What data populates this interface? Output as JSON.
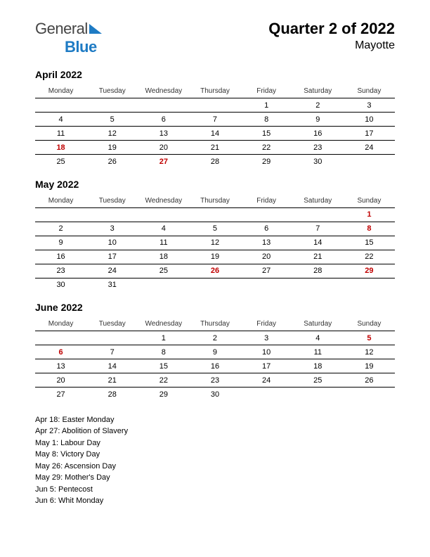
{
  "logo": {
    "general": "General",
    "blue": "Blue",
    "tri_color": "#1e7bc4"
  },
  "header": {
    "title": "Quarter 2 of 2022",
    "subtitle": "Mayotte"
  },
  "weekdays": [
    "Monday",
    "Tuesday",
    "Wednesday",
    "Thursday",
    "Friday",
    "Saturday",
    "Sunday"
  ],
  "colors": {
    "holiday": "#c00000",
    "text": "#000000",
    "border": "#000000",
    "background": "#ffffff"
  },
  "fonts": {
    "title_size": 22,
    "subtitle_size": 16,
    "month_title_size": 14,
    "weekday_size": 10,
    "cell_size": 11,
    "holiday_list_size": 11
  },
  "months": [
    {
      "title": "April 2022",
      "weeks": [
        [
          {
            "n": ""
          },
          {
            "n": ""
          },
          {
            "n": ""
          },
          {
            "n": ""
          },
          {
            "n": "1"
          },
          {
            "n": "2"
          },
          {
            "n": "3"
          }
        ],
        [
          {
            "n": "4"
          },
          {
            "n": "5"
          },
          {
            "n": "6"
          },
          {
            "n": "7"
          },
          {
            "n": "8"
          },
          {
            "n": "9"
          },
          {
            "n": "10"
          }
        ],
        [
          {
            "n": "11"
          },
          {
            "n": "12"
          },
          {
            "n": "13"
          },
          {
            "n": "14"
          },
          {
            "n": "15"
          },
          {
            "n": "16"
          },
          {
            "n": "17"
          }
        ],
        [
          {
            "n": "18",
            "h": true
          },
          {
            "n": "19"
          },
          {
            "n": "20"
          },
          {
            "n": "21"
          },
          {
            "n": "22"
          },
          {
            "n": "23"
          },
          {
            "n": "24"
          }
        ],
        [
          {
            "n": "25"
          },
          {
            "n": "26"
          },
          {
            "n": "27",
            "h": true
          },
          {
            "n": "28"
          },
          {
            "n": "29"
          },
          {
            "n": "30"
          },
          {
            "n": ""
          }
        ]
      ]
    },
    {
      "title": "May 2022",
      "weeks": [
        [
          {
            "n": ""
          },
          {
            "n": ""
          },
          {
            "n": ""
          },
          {
            "n": ""
          },
          {
            "n": ""
          },
          {
            "n": ""
          },
          {
            "n": "1",
            "h": true
          }
        ],
        [
          {
            "n": "2"
          },
          {
            "n": "3"
          },
          {
            "n": "4"
          },
          {
            "n": "5"
          },
          {
            "n": "6"
          },
          {
            "n": "7"
          },
          {
            "n": "8",
            "h": true
          }
        ],
        [
          {
            "n": "9"
          },
          {
            "n": "10"
          },
          {
            "n": "11"
          },
          {
            "n": "12"
          },
          {
            "n": "13"
          },
          {
            "n": "14"
          },
          {
            "n": "15"
          }
        ],
        [
          {
            "n": "16"
          },
          {
            "n": "17"
          },
          {
            "n": "18"
          },
          {
            "n": "19"
          },
          {
            "n": "20"
          },
          {
            "n": "21"
          },
          {
            "n": "22"
          }
        ],
        [
          {
            "n": "23"
          },
          {
            "n": "24"
          },
          {
            "n": "25"
          },
          {
            "n": "26",
            "h": true
          },
          {
            "n": "27"
          },
          {
            "n": "28"
          },
          {
            "n": "29",
            "h": true
          }
        ],
        [
          {
            "n": "30"
          },
          {
            "n": "31"
          },
          {
            "n": ""
          },
          {
            "n": ""
          },
          {
            "n": ""
          },
          {
            "n": ""
          },
          {
            "n": ""
          }
        ]
      ]
    },
    {
      "title": "June 2022",
      "weeks": [
        [
          {
            "n": ""
          },
          {
            "n": ""
          },
          {
            "n": "1"
          },
          {
            "n": "2"
          },
          {
            "n": "3"
          },
          {
            "n": "4"
          },
          {
            "n": "5",
            "h": true
          }
        ],
        [
          {
            "n": "6",
            "h": true
          },
          {
            "n": "7"
          },
          {
            "n": "8"
          },
          {
            "n": "9"
          },
          {
            "n": "10"
          },
          {
            "n": "11"
          },
          {
            "n": "12"
          }
        ],
        [
          {
            "n": "13"
          },
          {
            "n": "14"
          },
          {
            "n": "15"
          },
          {
            "n": "16"
          },
          {
            "n": "17"
          },
          {
            "n": "18"
          },
          {
            "n": "19"
          }
        ],
        [
          {
            "n": "20"
          },
          {
            "n": "21"
          },
          {
            "n": "22"
          },
          {
            "n": "23"
          },
          {
            "n": "24"
          },
          {
            "n": "25"
          },
          {
            "n": "26"
          }
        ],
        [
          {
            "n": "27"
          },
          {
            "n": "28"
          },
          {
            "n": "29"
          },
          {
            "n": "30"
          },
          {
            "n": ""
          },
          {
            "n": ""
          },
          {
            "n": ""
          }
        ]
      ]
    }
  ],
  "holidays": [
    "Apr 18: Easter Monday",
    "Apr 27: Abolition of Slavery",
    "May 1: Labour Day",
    "May 8: Victory Day",
    "May 26: Ascension Day",
    "May 29: Mother's Day",
    "Jun 5: Pentecost",
    "Jun 6: Whit Monday"
  ]
}
